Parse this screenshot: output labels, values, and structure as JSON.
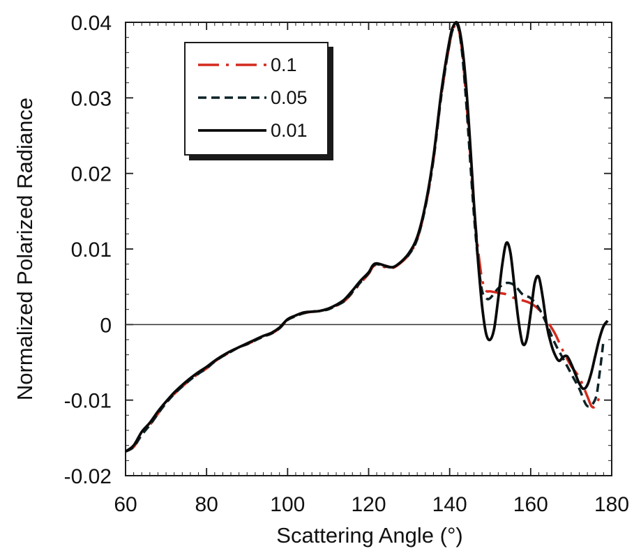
{
  "chart_data": {
    "type": "line",
    "title": "",
    "xlabel": "Scattering Angle (°)",
    "ylabel": "Normalized Polarized Radiance",
    "xlim": [
      60,
      180
    ],
    "ylim": [
      -0.02,
      0.04
    ],
    "x_ticks": [
      "60",
      "80",
      "100",
      "120",
      "140",
      "160",
      "180"
    ],
    "y_ticks": [
      "-0.02",
      "-0.01",
      "0",
      "0.01",
      "0.02",
      "0.03",
      "0.04"
    ],
    "grid": false,
    "zero_line": true,
    "legend_position": "top-left",
    "series": [
      {
        "name": "0.1",
        "color": "#d42a1e",
        "dash": "dash-dot",
        "x": [
          60,
          62,
          64,
          66,
          68,
          70,
          72,
          74,
          76,
          78,
          80,
          82,
          84,
          86,
          88,
          90,
          92,
          94,
          96,
          98,
          100,
          102,
          104,
          106,
          108,
          110,
          112,
          114,
          116,
          118,
          120,
          121,
          122,
          124,
          126,
          128,
          130,
          132,
          134,
          136,
          138,
          140,
          141,
          142,
          143,
          144,
          145,
          146,
          147,
          148,
          149,
          150,
          152,
          154,
          156,
          158,
          160,
          162,
          164,
          166,
          168,
          170,
          172,
          174,
          175,
          176,
          177
        ],
        "y": [
          -0.0168,
          -0.0162,
          -0.0145,
          -0.0133,
          -0.0118,
          -0.0103,
          -0.0092,
          -0.0082,
          -0.0073,
          -0.0065,
          -0.0058,
          -0.0049,
          -0.0042,
          -0.0036,
          -0.003,
          -0.0026,
          -0.0021,
          -0.0016,
          -0.0012,
          -0.0005,
          0.0006,
          0.0012,
          0.0015,
          0.0017,
          0.0018,
          0.002,
          0.0025,
          0.0031,
          0.0042,
          0.0055,
          0.0067,
          0.0076,
          0.0079,
          0.0076,
          0.0075,
          0.0082,
          0.0093,
          0.0113,
          0.0155,
          0.0218,
          0.0305,
          0.0372,
          0.0393,
          0.0395,
          0.0365,
          0.0305,
          0.023,
          0.0155,
          0.01,
          0.006,
          0.0045,
          0.0044,
          0.0042,
          0.004,
          0.0035,
          0.0032,
          0.0028,
          0.002,
          0.0005,
          -0.0012,
          -0.0035,
          -0.0055,
          -0.007,
          -0.0095,
          -0.0108,
          -0.0108,
          -0.0095
        ]
      },
      {
        "name": "0.05",
        "color": "#0d2226",
        "dash": "dashed",
        "x": [
          60,
          62,
          64,
          66,
          68,
          70,
          72,
          74,
          76,
          78,
          80,
          82,
          84,
          86,
          88,
          90,
          92,
          94,
          96,
          98,
          100,
          102,
          104,
          106,
          108,
          110,
          112,
          114,
          116,
          118,
          120,
          121,
          122,
          124,
          126,
          128,
          130,
          132,
          134,
          136,
          138,
          140,
          141,
          142,
          143,
          144,
          145,
          146,
          147,
          148,
          149,
          150,
          152,
          154,
          156,
          158,
          160,
          162,
          164,
          166,
          168,
          170,
          172,
          174,
          176,
          177,
          178
        ],
        "y": [
          -0.0168,
          -0.0162,
          -0.0146,
          -0.0133,
          -0.0118,
          -0.0104,
          -0.0092,
          -0.0082,
          -0.0073,
          -0.0065,
          -0.0058,
          -0.0049,
          -0.0042,
          -0.0036,
          -0.003,
          -0.0026,
          -0.0021,
          -0.0016,
          -0.0012,
          -0.0005,
          0.0006,
          0.0011,
          0.0015,
          0.0017,
          0.0018,
          0.002,
          0.0025,
          0.0031,
          0.0043,
          0.0056,
          0.0068,
          0.0077,
          0.008,
          0.0077,
          0.0076,
          0.0083,
          0.0093,
          0.0113,
          0.0155,
          0.0218,
          0.0305,
          0.0373,
          0.0393,
          0.0395,
          0.0363,
          0.03,
          0.0222,
          0.0145,
          0.0085,
          0.0045,
          0.0035,
          0.0035,
          0.0048,
          0.0055,
          0.0052,
          0.004,
          0.0035,
          0.0022,
          0.0,
          -0.0025,
          -0.0045,
          -0.0065,
          -0.0085,
          -0.0108,
          -0.0098,
          -0.0065,
          -0.002
        ]
      },
      {
        "name": "0.01",
        "color": "#0a0a0a",
        "dash": "solid",
        "x": [
          60,
          62,
          64,
          66,
          68,
          70,
          72,
          74,
          76,
          78,
          80,
          82,
          84,
          86,
          88,
          90,
          92,
          94,
          96,
          98,
          100,
          102,
          104,
          106,
          108,
          110,
          112,
          114,
          116,
          118,
          120,
          121,
          122,
          124,
          126,
          128,
          130,
          132,
          134,
          136,
          138,
          140,
          141,
          142,
          143,
          144,
          145,
          146,
          147,
          148,
          149,
          150,
          151,
          152,
          153,
          154,
          155,
          156,
          157,
          158,
          159,
          160,
          161,
          162,
          163,
          164,
          165,
          166,
          167,
          168,
          169,
          170,
          171,
          172,
          173,
          174,
          175,
          176,
          177,
          178,
          179
        ],
        "y": [
          -0.0168,
          -0.016,
          -0.0142,
          -0.013,
          -0.0115,
          -0.0102,
          -0.009,
          -0.008,
          -0.0071,
          -0.0063,
          -0.0056,
          -0.0048,
          -0.0041,
          -0.0035,
          -0.003,
          -0.0025,
          -0.002,
          -0.0015,
          -0.0011,
          -0.0004,
          0.0007,
          0.0012,
          0.0016,
          0.0017,
          0.0018,
          0.0021,
          0.0026,
          0.0033,
          0.0045,
          0.0058,
          0.0069,
          0.0078,
          0.0081,
          0.0078,
          0.0076,
          0.0083,
          0.0095,
          0.0116,
          0.0158,
          0.0222,
          0.031,
          0.0377,
          0.0396,
          0.0398,
          0.0372,
          0.032,
          0.0245,
          0.016,
          0.0085,
          0.0025,
          -0.0012,
          -0.002,
          -0.0005,
          0.0035,
          0.008,
          0.0108,
          0.0095,
          0.005,
          0.0005,
          -0.0025,
          -0.002,
          0.0015,
          0.0055,
          0.0063,
          0.0035,
          -0.0002,
          -0.0025,
          -0.004,
          -0.0048,
          -0.0043,
          -0.0042,
          -0.0052,
          -0.0065,
          -0.0078,
          -0.0085,
          -0.008,
          -0.0063,
          -0.004,
          -0.0018,
          -0.0002,
          0.0005
        ]
      }
    ]
  }
}
